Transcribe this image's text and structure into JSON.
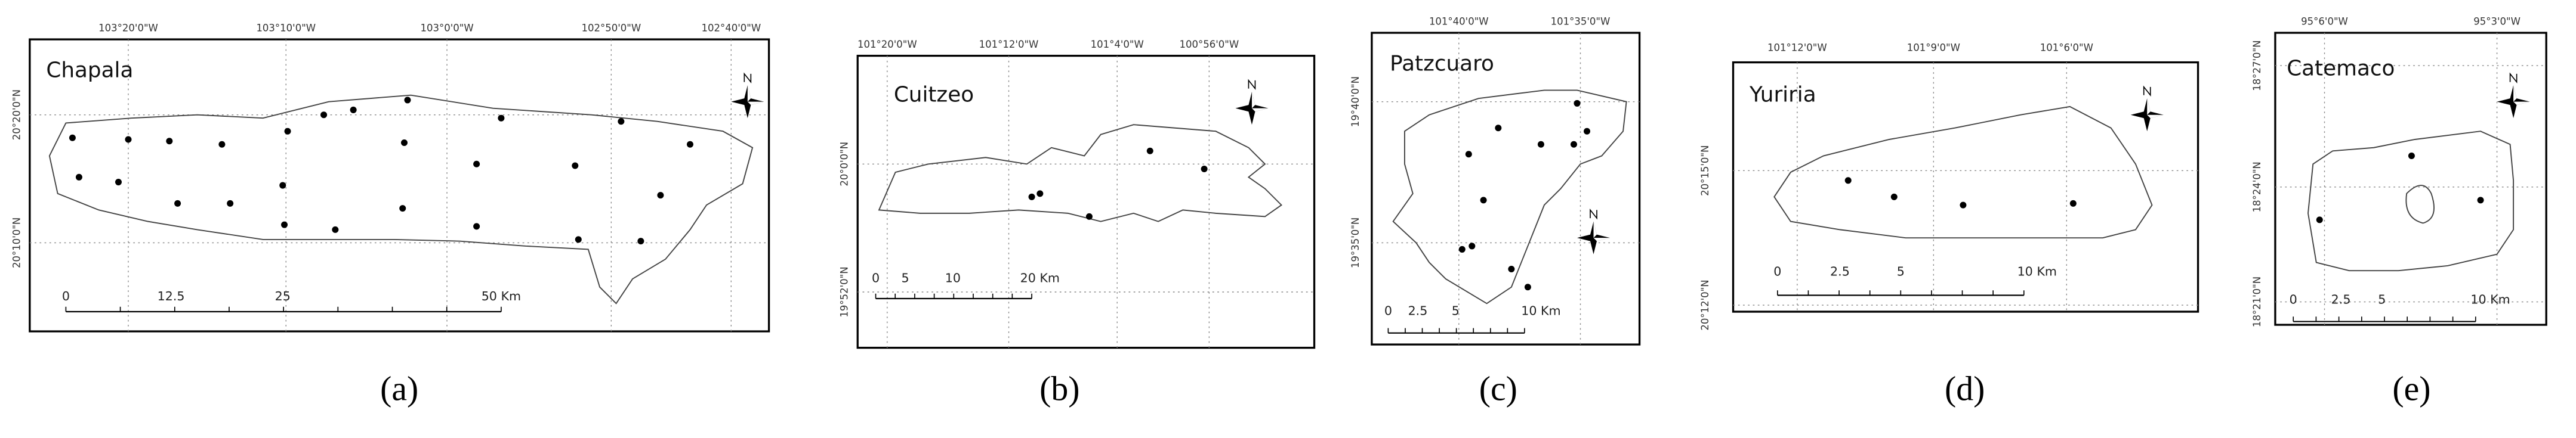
{
  "panels": [
    {
      "name": "Chapala",
      "caption": "(a)",
      "lon_labels": [
        "103°20'0\"W",
        "103°10'0\"W",
        "103°0'0\"W",
        "102°50'0\"W",
        "102°40'0\"W"
      ],
      "lat_labels": [
        "20°20'0\"N",
        "20°10'0\"N"
      ],
      "scale_labels": [
        "0",
        "12.5",
        "25",
        "50 Km"
      ]
    },
    {
      "name": "Cuitzeo",
      "caption": "(b)",
      "lon_labels": [
        "101°20'0\"W",
        "101°12'0\"W",
        "101°4'0\"W",
        "100°56'0\"W"
      ],
      "lat_labels": [
        "20°0'0\"N",
        "19°52'0\"N"
      ],
      "scale_labels": [
        "0",
        "5",
        "10",
        "20 Km"
      ]
    },
    {
      "name": "Patzcuaro",
      "caption": "(c)",
      "lon_labels": [
        "101°40'0\"W",
        "101°35'0\"W"
      ],
      "lat_labels": [
        "19°40'0\"N",
        "19°35'0\"N"
      ],
      "scale_labels": [
        "0",
        "2.5",
        "5",
        "10 Km"
      ]
    },
    {
      "name": "Yuriria",
      "caption": "(d)",
      "lon_labels": [
        "101°12'0\"W",
        "101°9'0\"W",
        "101°6'0\"W"
      ],
      "lat_labels": [
        "20°15'0\"N",
        "20°12'0\"N"
      ],
      "scale_labels": [
        "0",
        "2.5",
        "5",
        "10 Km"
      ]
    },
    {
      "name": "Catemaco",
      "caption": "(e)",
      "lon_labels": [
        "95°6'0\"W",
        "95°3'0\"W"
      ],
      "lat_labels": [
        "18°27'0\"N",
        "18°24'0\"N",
        "18°21'0\"N"
      ],
      "scale_labels": [
        "0",
        "2.5",
        "5",
        "10 Km"
      ]
    }
  ]
}
